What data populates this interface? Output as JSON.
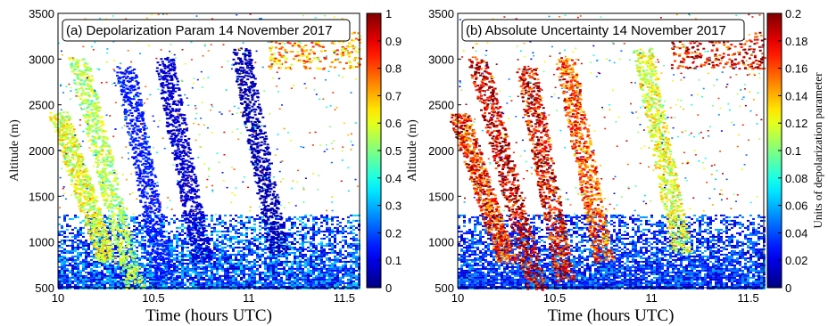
{
  "chart_data": [
    {
      "type": "heatmap",
      "title": "(a) Depolarization Param 14 November 2017",
      "xlabel": "Time (hours UTC)",
      "ylabel": "Altitude (m)",
      "x_ticks": [
        "10",
        "10.5",
        "11",
        "11.5"
      ],
      "y_ticks": [
        "500",
        "1000",
        "1500",
        "2000",
        "2500",
        "3000",
        "3500"
      ],
      "xlim": [
        10,
        11.58
      ],
      "ylim": [
        500,
        3500
      ],
      "colorbar": {
        "colormap": "jet",
        "range": [
          0,
          1
        ],
        "ticks": [
          "0",
          "0.1",
          "0.2",
          "0.3",
          "0.4",
          "0.5",
          "0.6",
          "0.7",
          "0.8",
          "0.9",
          "1"
        ],
        "label": ""
      },
      "description_regions": [
        {
          "kind": "boundary_layer",
          "x_range": [
            10,
            11.58
          ],
          "y_range": [
            500,
            1300
          ],
          "value_range": [
            0.05,
            0.35
          ]
        },
        {
          "kind": "fall_streak",
          "x": [
            10.0,
            10.25
          ],
          "y": [
            2400,
            800
          ],
          "value": 0.6
        },
        {
          "kind": "fall_streak",
          "x": [
            10.1,
            10.4
          ],
          "y": [
            3000,
            500
          ],
          "value": 0.55
        },
        {
          "kind": "fall_streak",
          "x": [
            10.35,
            10.55
          ],
          "y": [
            2900,
            600
          ],
          "value": 0.15
        },
        {
          "kind": "fall_streak",
          "x": [
            10.55,
            10.75
          ],
          "y": [
            3000,
            800
          ],
          "value": 0.08
        },
        {
          "kind": "fall_streak",
          "x": [
            10.95,
            11.15
          ],
          "y": [
            3100,
            900
          ],
          "value": 0.05
        },
        {
          "kind": "upper_cloud",
          "x": [
            11.1,
            11.58
          ],
          "y": [
            2900,
            3300
          ],
          "value": 0.75
        }
      ]
    },
    {
      "type": "heatmap",
      "title": "(b) Absolute Uncertainty 14 November 2017",
      "xlabel": "Time (hours UTC)",
      "ylabel": "Altitude (m)",
      "x_ticks": [
        "10",
        "10.5",
        "11",
        "11.5"
      ],
      "y_ticks": [
        "500",
        "1000",
        "1500",
        "2000",
        "2500",
        "3000",
        "3500"
      ],
      "xlim": [
        10,
        11.58
      ],
      "ylim": [
        500,
        3500
      ],
      "colorbar": {
        "colormap": "jet",
        "range": [
          0,
          0.2
        ],
        "ticks": [
          "0",
          "0.02",
          "0.04",
          "0.06",
          "0.08",
          "0.1",
          "0.12",
          "0.14",
          "0.16",
          "0.18",
          "0.2"
        ],
        "label": "Units of depolarization parameter"
      },
      "description_regions": [
        {
          "kind": "boundary_layer",
          "x_range": [
            10,
            11.58
          ],
          "y_range": [
            500,
            1300
          ],
          "value_range": [
            0.01,
            0.06
          ]
        },
        {
          "kind": "fall_streak",
          "x": [
            10.0,
            10.25
          ],
          "y": [
            2400,
            800
          ],
          "value": 0.17
        },
        {
          "kind": "fall_streak",
          "x": [
            10.1,
            10.4
          ],
          "y": [
            3000,
            500
          ],
          "value": 0.19
        },
        {
          "kind": "fall_streak",
          "x": [
            10.35,
            10.55
          ],
          "y": [
            2900,
            600
          ],
          "value": 0.18
        },
        {
          "kind": "fall_streak",
          "x": [
            10.55,
            10.75
          ],
          "y": [
            3000,
            800
          ],
          "value": 0.16
        },
        {
          "kind": "fall_streak",
          "x": [
            10.95,
            11.15
          ],
          "y": [
            3100,
            900
          ],
          "value": 0.12
        },
        {
          "kind": "upper_cloud",
          "x": [
            11.1,
            11.58
          ],
          "y": [
            2900,
            3300
          ],
          "value": 0.19
        }
      ]
    }
  ]
}
